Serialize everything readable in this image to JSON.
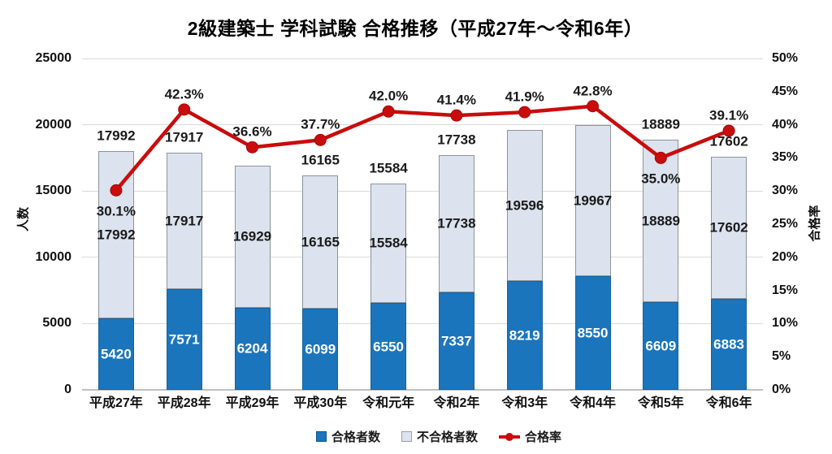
{
  "title": "2級建築士 学科試験 合格推移（平成27年～令和6年）",
  "chart_data": {
    "type": "bar",
    "subtype": "stacked-column-with-line",
    "title": "2級建築士 学科試験 合格推移（平成27年～令和6年）",
    "left_axis": {
      "label": "人数",
      "min": 0,
      "max": 25000,
      "step": 5000,
      "tick_labels": [
        "0",
        "5000",
        "10000",
        "15000",
        "20000",
        "25000"
      ]
    },
    "right_axis": {
      "label": "合格率",
      "min": 0,
      "max": 50,
      "step": 5,
      "tick_labels": [
        "0%",
        "5%",
        "10%",
        "15%",
        "20%",
        "25%",
        "30%",
        "35%",
        "40%",
        "45%",
        "50%"
      ]
    },
    "legend": [
      {
        "label": "合格者数",
        "swatch": "blue-square",
        "color": "#1b75bc"
      },
      {
        "label": "不合格者数",
        "swatch": "gray-square",
        "color": "#dce3ee"
      },
      {
        "label": "合格率",
        "swatch": "red-line-marker",
        "color": "#c90c0c"
      }
    ],
    "columns": [
      {
        "category": "平成27年",
        "total": 17992,
        "pass": 5420,
        "rate_pct": 30.1,
        "rate_label": "30.1%",
        "top_total_shown": true,
        "rate_label_side": "below"
      },
      {
        "category": "平成28年",
        "total": 17917,
        "pass": 7571,
        "rate_pct": 42.3,
        "rate_label": "42.3%",
        "top_total_shown": true,
        "rate_label_side": "above"
      },
      {
        "category": "平成29年",
        "total": 16929,
        "pass": 6204,
        "rate_pct": 36.6,
        "rate_label": "36.6%",
        "top_total_shown": false,
        "rate_label_side": "above"
      },
      {
        "category": "平成30年",
        "total": 16165,
        "pass": 6099,
        "rate_pct": 37.7,
        "rate_label": "37.7%",
        "top_total_shown": true,
        "rate_label_side": "above"
      },
      {
        "category": "令和元年",
        "total": 15584,
        "pass": 6550,
        "rate_pct": 42.0,
        "rate_label": "42.0%",
        "top_total_shown": true,
        "rate_label_side": "above"
      },
      {
        "category": "令和2年",
        "total": 17738,
        "pass": 7337,
        "rate_pct": 41.4,
        "rate_label": "41.4%",
        "top_total_shown": true,
        "rate_label_side": "above"
      },
      {
        "category": "令和3年",
        "total": 19596,
        "pass": 8219,
        "rate_pct": 41.9,
        "rate_label": "41.9%",
        "top_total_shown": false,
        "rate_label_side": "above"
      },
      {
        "category": "令和4年",
        "total": 19967,
        "pass": 8550,
        "rate_pct": 42.8,
        "rate_label": "42.8%",
        "top_total_shown": false,
        "rate_label_side": "above"
      },
      {
        "category": "令和5年",
        "total": 18889,
        "pass": 6609,
        "rate_pct": 35.0,
        "rate_label": "35.0%",
        "top_total_shown": true,
        "rate_label_side": "below"
      },
      {
        "category": "令和6年",
        "total": 17602,
        "pass": 6883,
        "rate_pct": 39.1,
        "rate_label": "39.1%",
        "top_total_shown": true,
        "rate_label_side": "above"
      }
    ],
    "colors": {
      "pass_bar": "#1b75bc",
      "fail_bar": "#dce3ee",
      "fail_bar_border": "#8c939d",
      "rate_line": "#c90c0c",
      "gridline": "#d9d9d9",
      "axis_line": "#bfbfbf"
    }
  }
}
